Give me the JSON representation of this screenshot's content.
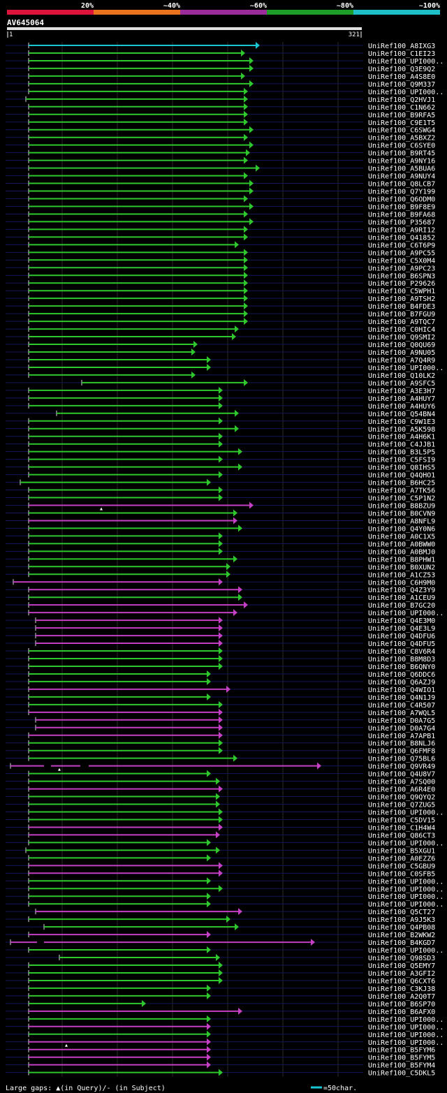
{
  "colors": {
    "bg": "#000000",
    "gridline": "#2a2a2a",
    "rowline": "#14145a",
    "query_bar": "#e0e0e0",
    "legend_segments": [
      "#dc143c",
      "#e8731c",
      "#9b2d9b",
      "#1e9e28",
      "#1ebfc8"
    ],
    "hit_colors": {
      "cyan": "#19c6d3",
      "green": "#2ec82e",
      "magenta": "#c33fc3"
    }
  },
  "legend": {
    "labels": [
      "20%",
      "~40%",
      "~60%",
      "~80%",
      "~100%"
    ]
  },
  "query": {
    "id": "AV645064",
    "start": "1",
    "end": "321"
  },
  "footer": {
    "gaps_text": "Large gaps: ▲(in Query)/- (in Subject)",
    "scale_text": "=50char."
  },
  "hits": [
    {
      "name": "UniRef100_A8IXG3",
      "s": 26,
      "e": 357,
      "c": "cyan"
    },
    {
      "name": "UniRef100_C1EI23",
      "s": 26,
      "e": 336,
      "c": "green"
    },
    {
      "name": "UniRef100_UPI000..",
      "s": 26,
      "e": 348,
      "c": "green"
    },
    {
      "name": "UniRef100_Q3E9Q2",
      "s": 26,
      "e": 348,
      "c": "green"
    },
    {
      "name": "UniRef100_A4S8E0",
      "s": 26,
      "e": 336,
      "c": "green"
    },
    {
      "name": "UniRef100_Q9M337",
      "s": 26,
      "e": 348,
      "c": "green"
    },
    {
      "name": "UniRef100_UPI000..",
      "s": 26,
      "e": 340,
      "c": "green"
    },
    {
      "name": "UniRef100_Q2HVJ1",
      "s": 22,
      "e": 340,
      "c": "green"
    },
    {
      "name": "UniRef100_C1N662",
      "s": 26,
      "e": 340,
      "c": "green"
    },
    {
      "name": "UniRef100_B9RFA5",
      "s": 26,
      "e": 340,
      "c": "green"
    },
    {
      "name": "UniRef100_C9E1T5",
      "s": 26,
      "e": 340,
      "c": "green"
    },
    {
      "name": "UniRef100_C6SWG4",
      "s": 26,
      "e": 348,
      "c": "green"
    },
    {
      "name": "UniRef100_A5BXZ2",
      "s": 26,
      "e": 340,
      "c": "green"
    },
    {
      "name": "UniRef100_C6SYE0",
      "s": 26,
      "e": 348,
      "c": "green"
    },
    {
      "name": "UniRef100_B9RT45",
      "s": 26,
      "e": 343,
      "c": "green"
    },
    {
      "name": "UniRef100_A9NY16",
      "s": 26,
      "e": 340,
      "c": "green"
    },
    {
      "name": "UniRef100_A5BUA6",
      "s": 26,
      "e": 357,
      "c": "green"
    },
    {
      "name": "UniRef100_A9NUY4",
      "s": 26,
      "e": 340,
      "c": "green"
    },
    {
      "name": "UniRef100_Q8LCB7",
      "s": 26,
      "e": 348,
      "c": "green"
    },
    {
      "name": "UniRef100_Q7Y199",
      "s": 26,
      "e": 348,
      "c": "green"
    },
    {
      "name": "UniRef100_Q6ODM0",
      "s": 26,
      "e": 340,
      "c": "green"
    },
    {
      "name": "UniRef100_B9F8E9",
      "s": 26,
      "e": 348,
      "c": "green"
    },
    {
      "name": "UniRef100_B9FA68",
      "s": 26,
      "e": 340,
      "c": "green"
    },
    {
      "name": "UniRef100_P35687",
      "s": 26,
      "e": 348,
      "c": "green"
    },
    {
      "name": "UniRef100_A9RI12",
      "s": 26,
      "e": 340,
      "c": "green"
    },
    {
      "name": "UniRef100_Q41852",
      "s": 26,
      "e": 340,
      "c": "green"
    },
    {
      "name": "UniRef100_C6T6P9",
      "s": 26,
      "e": 327,
      "c": "green"
    },
    {
      "name": "UniRef100_A9PC55",
      "s": 26,
      "e": 340,
      "c": "green"
    },
    {
      "name": "UniRef100_C5X0M4",
      "s": 26,
      "e": 340,
      "c": "green"
    },
    {
      "name": "UniRef100_A9PC23",
      "s": 26,
      "e": 340,
      "c": "green"
    },
    {
      "name": "UniRef100_B6SPN3",
      "s": 26,
      "e": 340,
      "c": "green"
    },
    {
      "name": "UniRef100_P29626",
      "s": 26,
      "e": 340,
      "c": "green"
    },
    {
      "name": "UniRef100_C5WPH1",
      "s": 26,
      "e": 340,
      "c": "green"
    },
    {
      "name": "UniRef100_A9TSH2",
      "s": 26,
      "e": 340,
      "c": "green"
    },
    {
      "name": "UniRef100_B4FDE3",
      "s": 26,
      "e": 340,
      "c": "green"
    },
    {
      "name": "UniRef100_B7FGU9",
      "s": 26,
      "e": 340,
      "c": "green"
    },
    {
      "name": "UniRef100_A9TQC7",
      "s": 26,
      "e": 340,
      "c": "green"
    },
    {
      "name": "UniRef100_C0HIC4",
      "s": 26,
      "e": 327,
      "c": "green"
    },
    {
      "name": "UniRef100_Q9SMI2",
      "s": 26,
      "e": 323,
      "c": "green"
    },
    {
      "name": "UniRef100_Q0QU69",
      "s": 26,
      "e": 268,
      "c": "green"
    },
    {
      "name": "UniRef100_A9NU05",
      "s": 26,
      "e": 265,
      "c": "green"
    },
    {
      "name": "UniRef100_A7Q4R9",
      "s": 26,
      "e": 287,
      "c": "green"
    },
    {
      "name": "UniRef100_UPI000..",
      "s": 26,
      "e": 287,
      "c": "green"
    },
    {
      "name": "UniRef100_Q10LK2",
      "s": 26,
      "e": 265,
      "c": "green"
    },
    {
      "name": "UniRef100_A9SFC5",
      "s": 102,
      "e": 340,
      "c": "green"
    },
    {
      "name": "UniRef100_A3E3H7",
      "s": 26,
      "e": 304,
      "c": "green"
    },
    {
      "name": "UniRef100_A4HUY7",
      "s": 26,
      "e": 304,
      "c": "green"
    },
    {
      "name": "UniRef100_A4HUY6",
      "s": 26,
      "e": 304,
      "c": "green"
    },
    {
      "name": "UniRef100_Q54BN4",
      "s": 66,
      "e": 327,
      "c": "green"
    },
    {
      "name": "UniRef100_C9W1E3",
      "s": 26,
      "e": 304,
      "c": "green"
    },
    {
      "name": "UniRef100_A5K598",
      "s": 26,
      "e": 327,
      "c": "green"
    },
    {
      "name": "UniRef100_A4H6K1",
      "s": 26,
      "e": 304,
      "c": "green"
    },
    {
      "name": "UniRef100_C4JJB1",
      "s": 26,
      "e": 304,
      "c": "green"
    },
    {
      "name": "UniRef100_B3L5P5",
      "s": 26,
      "e": 332,
      "c": "green"
    },
    {
      "name": "UniRef100_C5FSI9",
      "s": 26,
      "e": 304,
      "c": "green"
    },
    {
      "name": "UniRef100_Q8IHS5",
      "s": 26,
      "e": 332,
      "c": "green"
    },
    {
      "name": "UniRef100_Q4QHO1",
      "s": 26,
      "e": 304,
      "c": "green"
    },
    {
      "name": "UniRef100_B6HC25",
      "s": 14,
      "e": 287,
      "c": "green"
    },
    {
      "name": "UniRef100_A7TK56",
      "s": 26,
      "e": 304,
      "c": "green"
    },
    {
      "name": "UniRef100_C5P1N2",
      "s": 26,
      "e": 304,
      "c": "green"
    },
    {
      "name": "UniRef100_B8BZU9",
      "s": 26,
      "e": 348,
      "c": "magenta",
      "gapMark": 130
    },
    {
      "name": "UniRef100_B0CVN9",
      "s": 26,
      "e": 325,
      "c": "green"
    },
    {
      "name": "UniRef100_A8NFL9",
      "s": 26,
      "e": 325,
      "c": "magenta"
    },
    {
      "name": "UniRef100_Q4Y0N6",
      "s": 26,
      "e": 332,
      "c": "green"
    },
    {
      "name": "UniRef100_A0C1X5",
      "s": 26,
      "e": 304,
      "c": "green"
    },
    {
      "name": "UniRef100_A0BWW0",
      "s": 26,
      "e": 304,
      "c": "green"
    },
    {
      "name": "UniRef100_A0BMJ0",
      "s": 26,
      "e": 304,
      "c": "green"
    },
    {
      "name": "UniRef100_B8PHW1",
      "s": 26,
      "e": 325,
      "c": "green"
    },
    {
      "name": "UniRef100_B0XUN2",
      "s": 26,
      "e": 315,
      "c": "green"
    },
    {
      "name": "UniRef100_A1CZ53",
      "s": 26,
      "e": 315,
      "c": "green"
    },
    {
      "name": "UniRef100_C6H9M0",
      "s": 4,
      "e": 304,
      "c": "magenta"
    },
    {
      "name": "UniRef100_Q4Z3Y9",
      "s": 26,
      "e": 332,
      "c": "magenta"
    },
    {
      "name": "UniRef100_A1CEU9",
      "s": 26,
      "e": 332,
      "c": "green"
    },
    {
      "name": "UniRef100_B7GC20",
      "s": 26,
      "e": 340,
      "c": "magenta"
    },
    {
      "name": "UniRef100_UPI000..",
      "s": 26,
      "e": 325,
      "c": "magenta"
    },
    {
      "name": "UniRef100_Q4E3M0",
      "s": 36,
      "e": 304,
      "c": "magenta"
    },
    {
      "name": "UniRef100_Q4E3L9",
      "s": 36,
      "e": 304,
      "c": "magenta"
    },
    {
      "name": "UniRef100_Q4DFU6",
      "s": 36,
      "e": 304,
      "c": "magenta"
    },
    {
      "name": "UniRef100_Q4DFU5",
      "s": 36,
      "e": 304,
      "c": "magenta"
    },
    {
      "name": "UniRef100_C8V6R4",
      "s": 26,
      "e": 304,
      "c": "green"
    },
    {
      "name": "UniRef100_B8M8D3",
      "s": 26,
      "e": 304,
      "c": "green"
    },
    {
      "name": "UniRef100_B6QNY0",
      "s": 26,
      "e": 304,
      "c": "green"
    },
    {
      "name": "UniRef100_Q6DDC6",
      "s": 26,
      "e": 287,
      "c": "green"
    },
    {
      "name": "UniRef100_Q6AZJ9",
      "s": 26,
      "e": 287,
      "c": "green"
    },
    {
      "name": "UniRef100_Q4WIO1",
      "s": 26,
      "e": 315,
      "c": "magenta"
    },
    {
      "name": "UniRef100_Q4N1J9",
      "s": 26,
      "e": 287,
      "c": "green"
    },
    {
      "name": "UniRef100_C4R507",
      "s": 26,
      "e": 304,
      "c": "green"
    },
    {
      "name": "UniRef100_A7WQL5",
      "s": 26,
      "e": 304,
      "c": "magenta"
    },
    {
      "name": "UniRef100_D0A7G5",
      "s": 36,
      "e": 304,
      "c": "magenta"
    },
    {
      "name": "UniRef100_D0A7G4",
      "s": 36,
      "e": 304,
      "c": "magenta"
    },
    {
      "name": "UniRef100_A7APB1",
      "s": 26,
      "e": 304,
      "c": "magenta"
    },
    {
      "name": "UniRef100_B8NLJ6",
      "s": 26,
      "e": 304,
      "c": "green"
    },
    {
      "name": "UniRef100_Q6FMF8",
      "s": 26,
      "e": 304,
      "c": "green"
    },
    {
      "name": "UniRef100_Q75BL6",
      "s": 26,
      "e": 325,
      "c": "green"
    },
    {
      "name": "UniRef100_Q9VR49",
      "s": 0,
      "e": 445,
      "c": "magenta",
      "gapMark": 70,
      "subjGaps": [
        [
          48,
          58
        ],
        [
          100,
          112
        ]
      ]
    },
    {
      "name": "UniRef100_Q4U8V7",
      "s": 26,
      "e": 287,
      "c": "green"
    },
    {
      "name": "UniRef100_A7SQ00",
      "s": 26,
      "e": 300,
      "c": "green"
    },
    {
      "name": "UniRef100_A6R4E0",
      "s": 26,
      "e": 304,
      "c": "magenta"
    },
    {
      "name": "UniRef100_Q9QYQ2",
      "s": 26,
      "e": 300,
      "c": "green"
    },
    {
      "name": "UniRef100_Q7ZUG5",
      "s": 26,
      "e": 300,
      "c": "green"
    },
    {
      "name": "UniRef100_UPI000..",
      "s": 26,
      "e": 304,
      "c": "green"
    },
    {
      "name": "UniRef100_C5DV15",
      "s": 26,
      "e": 304,
      "c": "green"
    },
    {
      "name": "UniRef100_C1H4W4",
      "s": 26,
      "e": 304,
      "c": "magenta"
    },
    {
      "name": "UniRef100_Q86CT3",
      "s": 26,
      "e": 300,
      "c": "magenta"
    },
    {
      "name": "UniRef100_UPI000..",
      "s": 26,
      "e": 287,
      "c": "green"
    },
    {
      "name": "UniRef100_B5XGU1",
      "s": 22,
      "e": 300,
      "c": "green"
    },
    {
      "name": "UniRef100_A0EZZ6",
      "s": 26,
      "e": 287,
      "c": "green"
    },
    {
      "name": "UniRef100_C5GBU9",
      "s": 26,
      "e": 304,
      "c": "magenta"
    },
    {
      "name": "UniRef100_C0SFB5",
      "s": 26,
      "e": 304,
      "c": "magenta"
    },
    {
      "name": "UniRef100_UPI000..",
      "s": 26,
      "e": 287,
      "c": "green"
    },
    {
      "name": "UniRef100_UPI000..",
      "s": 26,
      "e": 304,
      "c": "green"
    },
    {
      "name": "UniRef100_UPI000..",
      "s": 26,
      "e": 287,
      "c": "green"
    },
    {
      "name": "UniRef100_UPI000..",
      "s": 26,
      "e": 287,
      "c": "green"
    },
    {
      "name": "UniRef100_Q5CT27",
      "s": 36,
      "e": 332,
      "c": "magenta"
    },
    {
      "name": "UniRef100_A9J5K3",
      "s": 26,
      "e": 315,
      "c": "green"
    },
    {
      "name": "UniRef100_Q4PB08",
      "s": 48,
      "e": 327,
      "c": "green"
    },
    {
      "name": "UniRef100_B2WKW2",
      "s": 26,
      "e": 287,
      "c": "magenta"
    },
    {
      "name": "UniRef100_B4KGD7",
      "s": 0,
      "e": 436,
      "c": "magenta",
      "subjGaps": [
        [
          38,
          48
        ]
      ]
    },
    {
      "name": "UniRef100_UPI000..",
      "s": 26,
      "e": 287,
      "c": "green"
    },
    {
      "name": "UniRef100_Q98SD3",
      "s": 70,
      "e": 300,
      "c": "green"
    },
    {
      "name": "UniRef100_Q5EMY7",
      "s": 26,
      "e": 304,
      "c": "green"
    },
    {
      "name": "UniRef100_A3GFI2",
      "s": 26,
      "e": 304,
      "c": "green"
    },
    {
      "name": "UniRef100_Q6CXT6",
      "s": 26,
      "e": 304,
      "c": "green"
    },
    {
      "name": "UniRef100_C3KJ38",
      "s": 26,
      "e": 287,
      "c": "green"
    },
    {
      "name": "UniRef100_A2Q0T7",
      "s": 26,
      "e": 287,
      "c": "green"
    },
    {
      "name": "UniRef100_B6SP70",
      "s": 26,
      "e": 194,
      "c": "green"
    },
    {
      "name": "UniRef100_B6AFX0",
      "s": 26,
      "e": 332,
      "c": "magenta"
    },
    {
      "name": "UniRef100_UPI000..",
      "s": 26,
      "e": 287,
      "c": "green"
    },
    {
      "name": "UniRef100_UPI000..",
      "s": 26,
      "e": 287,
      "c": "magenta"
    },
    {
      "name": "UniRef100_UPI000..",
      "s": 26,
      "e": 287,
      "c": "green"
    },
    {
      "name": "UniRef100_UPI000..",
      "s": 26,
      "e": 287,
      "c": "magenta",
      "gapMark": 80
    },
    {
      "name": "UniRef100_B5FYM6",
      "s": 26,
      "e": 287,
      "c": "magenta"
    },
    {
      "name": "UniRef100_B5FYM5",
      "s": 26,
      "e": 287,
      "c": "magenta"
    },
    {
      "name": "UniRef100_B5FYM4",
      "s": 26,
      "e": 287,
      "c": "magenta"
    },
    {
      "name": "UniRef100_C5DKL5",
      "s": 26,
      "e": 304,
      "c": "green"
    }
  ]
}
